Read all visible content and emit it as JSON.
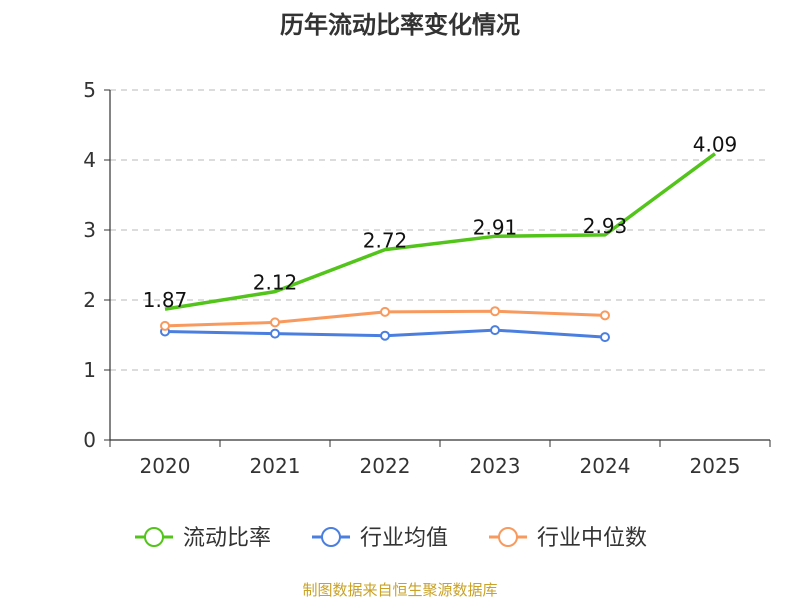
{
  "chart_data": {
    "type": "line",
    "title": "历年流动比率变化情况",
    "categories": [
      "2020",
      "2021",
      "2022",
      "2023",
      "2024",
      "2025"
    ],
    "ylim": [
      0,
      5
    ],
    "yticks": [
      "0",
      "1",
      "2",
      "3",
      "4",
      "5"
    ],
    "grid": true,
    "legend_position": "bottom",
    "series": [
      {
        "name": "流动比率",
        "color": "#52c41a",
        "marker": "none",
        "values": [
          1.87,
          2.12,
          2.72,
          2.91,
          2.93,
          4.09
        ],
        "labels": [
          "1.87",
          "2.12",
          "2.72",
          "2.91",
          "2.93",
          "4.09"
        ]
      },
      {
        "name": "行业均值",
        "color": "#4a7fe0",
        "marker": "circle",
        "values": [
          1.55,
          1.52,
          1.49,
          1.57,
          1.47,
          null
        ]
      },
      {
        "name": "行业中位数",
        "color": "#f89a5e",
        "marker": "circle",
        "values": [
          1.63,
          1.68,
          1.83,
          1.84,
          1.78,
          null
        ]
      }
    ],
    "source": "制图数据来自恒生聚源数据库"
  }
}
